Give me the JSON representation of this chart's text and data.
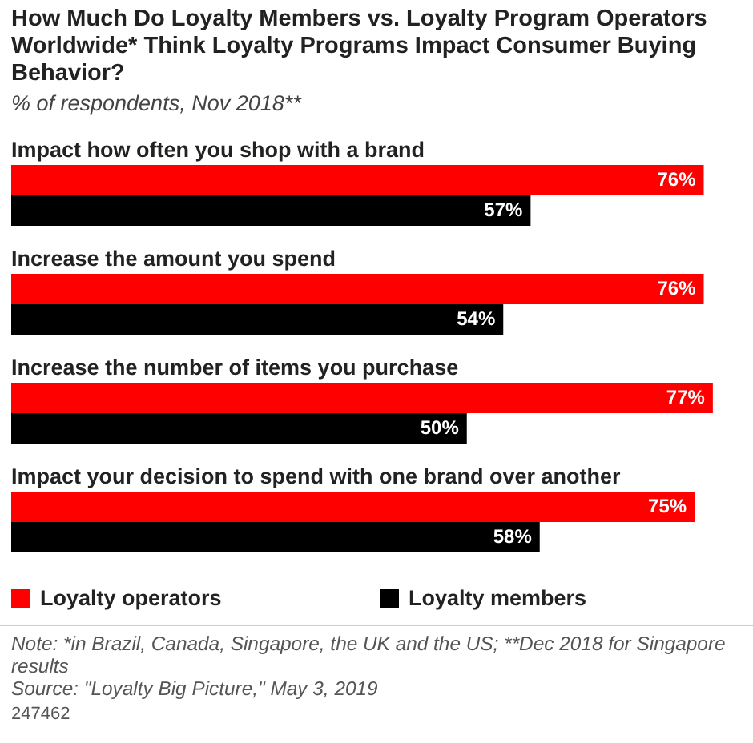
{
  "chart_data": {
    "type": "bar",
    "orientation": "horizontal",
    "title": "How Much Do Loyalty Members vs. Loyalty Program Operators Worldwide* Think Loyalty Programs Impact Consumer Buying Behavior?",
    "subtitle": "% of respondents, Nov 2018**",
    "categories": [
      "Impact how often you shop with a brand",
      "Increase the amount you spend",
      "Increase the number of items you purchase",
      "Impact your decision to spend with one brand over another"
    ],
    "series": [
      {
        "name": "Loyalty operators",
        "color": "#ff0000",
        "values": [
          76,
          76,
          77,
          75
        ],
        "value_labels": [
          "76%",
          "76%",
          "77%",
          "75%"
        ]
      },
      {
        "name": "Loyalty members",
        "color": "#000000",
        "values": [
          57,
          54,
          50,
          58
        ],
        "value_labels": [
          "57%",
          "54%",
          "50%",
          "58%"
        ]
      }
    ],
    "legend": "bottom",
    "annotations": [
      "Note: *in Brazil, Canada, Singapore, the UK and the US; **Dec 2018 for Singapore results",
      "Source: \"Loyalty Big Picture,\" May 3, 2019",
      "247462"
    ]
  }
}
